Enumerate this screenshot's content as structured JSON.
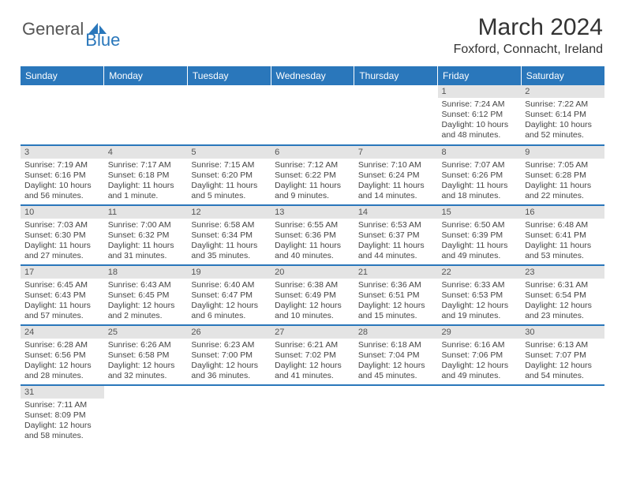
{
  "logo": {
    "general": "General",
    "blue": "Blue"
  },
  "title": "March 2024",
  "location": "Foxford, Connacht, Ireland",
  "colors": {
    "header_bg": "#2a77bb",
    "header_text": "#ffffff",
    "daynum_bg": "#e4e4e4",
    "border": "#2a77bb",
    "text": "#333333"
  },
  "weekdays": [
    "Sunday",
    "Monday",
    "Tuesday",
    "Wednesday",
    "Thursday",
    "Friday",
    "Saturday"
  ],
  "weeks": [
    [
      {
        "n": "",
        "sr": "",
        "ss": "",
        "dl": ""
      },
      {
        "n": "",
        "sr": "",
        "ss": "",
        "dl": ""
      },
      {
        "n": "",
        "sr": "",
        "ss": "",
        "dl": ""
      },
      {
        "n": "",
        "sr": "",
        "ss": "",
        "dl": ""
      },
      {
        "n": "",
        "sr": "",
        "ss": "",
        "dl": ""
      },
      {
        "n": "1",
        "sr": "Sunrise: 7:24 AM",
        "ss": "Sunset: 6:12 PM",
        "dl": "Daylight: 10 hours and 48 minutes."
      },
      {
        "n": "2",
        "sr": "Sunrise: 7:22 AM",
        "ss": "Sunset: 6:14 PM",
        "dl": "Daylight: 10 hours and 52 minutes."
      }
    ],
    [
      {
        "n": "3",
        "sr": "Sunrise: 7:19 AM",
        "ss": "Sunset: 6:16 PM",
        "dl": "Daylight: 10 hours and 56 minutes."
      },
      {
        "n": "4",
        "sr": "Sunrise: 7:17 AM",
        "ss": "Sunset: 6:18 PM",
        "dl": "Daylight: 11 hours and 1 minute."
      },
      {
        "n": "5",
        "sr": "Sunrise: 7:15 AM",
        "ss": "Sunset: 6:20 PM",
        "dl": "Daylight: 11 hours and 5 minutes."
      },
      {
        "n": "6",
        "sr": "Sunrise: 7:12 AM",
        "ss": "Sunset: 6:22 PM",
        "dl": "Daylight: 11 hours and 9 minutes."
      },
      {
        "n": "7",
        "sr": "Sunrise: 7:10 AM",
        "ss": "Sunset: 6:24 PM",
        "dl": "Daylight: 11 hours and 14 minutes."
      },
      {
        "n": "8",
        "sr": "Sunrise: 7:07 AM",
        "ss": "Sunset: 6:26 PM",
        "dl": "Daylight: 11 hours and 18 minutes."
      },
      {
        "n": "9",
        "sr": "Sunrise: 7:05 AM",
        "ss": "Sunset: 6:28 PM",
        "dl": "Daylight: 11 hours and 22 minutes."
      }
    ],
    [
      {
        "n": "10",
        "sr": "Sunrise: 7:03 AM",
        "ss": "Sunset: 6:30 PM",
        "dl": "Daylight: 11 hours and 27 minutes."
      },
      {
        "n": "11",
        "sr": "Sunrise: 7:00 AM",
        "ss": "Sunset: 6:32 PM",
        "dl": "Daylight: 11 hours and 31 minutes."
      },
      {
        "n": "12",
        "sr": "Sunrise: 6:58 AM",
        "ss": "Sunset: 6:34 PM",
        "dl": "Daylight: 11 hours and 35 minutes."
      },
      {
        "n": "13",
        "sr": "Sunrise: 6:55 AM",
        "ss": "Sunset: 6:36 PM",
        "dl": "Daylight: 11 hours and 40 minutes."
      },
      {
        "n": "14",
        "sr": "Sunrise: 6:53 AM",
        "ss": "Sunset: 6:37 PM",
        "dl": "Daylight: 11 hours and 44 minutes."
      },
      {
        "n": "15",
        "sr": "Sunrise: 6:50 AM",
        "ss": "Sunset: 6:39 PM",
        "dl": "Daylight: 11 hours and 49 minutes."
      },
      {
        "n": "16",
        "sr": "Sunrise: 6:48 AM",
        "ss": "Sunset: 6:41 PM",
        "dl": "Daylight: 11 hours and 53 minutes."
      }
    ],
    [
      {
        "n": "17",
        "sr": "Sunrise: 6:45 AM",
        "ss": "Sunset: 6:43 PM",
        "dl": "Daylight: 11 hours and 57 minutes."
      },
      {
        "n": "18",
        "sr": "Sunrise: 6:43 AM",
        "ss": "Sunset: 6:45 PM",
        "dl": "Daylight: 12 hours and 2 minutes."
      },
      {
        "n": "19",
        "sr": "Sunrise: 6:40 AM",
        "ss": "Sunset: 6:47 PM",
        "dl": "Daylight: 12 hours and 6 minutes."
      },
      {
        "n": "20",
        "sr": "Sunrise: 6:38 AM",
        "ss": "Sunset: 6:49 PM",
        "dl": "Daylight: 12 hours and 10 minutes."
      },
      {
        "n": "21",
        "sr": "Sunrise: 6:36 AM",
        "ss": "Sunset: 6:51 PM",
        "dl": "Daylight: 12 hours and 15 minutes."
      },
      {
        "n": "22",
        "sr": "Sunrise: 6:33 AM",
        "ss": "Sunset: 6:53 PM",
        "dl": "Daylight: 12 hours and 19 minutes."
      },
      {
        "n": "23",
        "sr": "Sunrise: 6:31 AM",
        "ss": "Sunset: 6:54 PM",
        "dl": "Daylight: 12 hours and 23 minutes."
      }
    ],
    [
      {
        "n": "24",
        "sr": "Sunrise: 6:28 AM",
        "ss": "Sunset: 6:56 PM",
        "dl": "Daylight: 12 hours and 28 minutes."
      },
      {
        "n": "25",
        "sr": "Sunrise: 6:26 AM",
        "ss": "Sunset: 6:58 PM",
        "dl": "Daylight: 12 hours and 32 minutes."
      },
      {
        "n": "26",
        "sr": "Sunrise: 6:23 AM",
        "ss": "Sunset: 7:00 PM",
        "dl": "Daylight: 12 hours and 36 minutes."
      },
      {
        "n": "27",
        "sr": "Sunrise: 6:21 AM",
        "ss": "Sunset: 7:02 PM",
        "dl": "Daylight: 12 hours and 41 minutes."
      },
      {
        "n": "28",
        "sr": "Sunrise: 6:18 AM",
        "ss": "Sunset: 7:04 PM",
        "dl": "Daylight: 12 hours and 45 minutes."
      },
      {
        "n": "29",
        "sr": "Sunrise: 6:16 AM",
        "ss": "Sunset: 7:06 PM",
        "dl": "Daylight: 12 hours and 49 minutes."
      },
      {
        "n": "30",
        "sr": "Sunrise: 6:13 AM",
        "ss": "Sunset: 7:07 PM",
        "dl": "Daylight: 12 hours and 54 minutes."
      }
    ],
    [
      {
        "n": "31",
        "sr": "Sunrise: 7:11 AM",
        "ss": "Sunset: 8:09 PM",
        "dl": "Daylight: 12 hours and 58 minutes."
      },
      {
        "n": "",
        "sr": "",
        "ss": "",
        "dl": ""
      },
      {
        "n": "",
        "sr": "",
        "ss": "",
        "dl": ""
      },
      {
        "n": "",
        "sr": "",
        "ss": "",
        "dl": ""
      },
      {
        "n": "",
        "sr": "",
        "ss": "",
        "dl": ""
      },
      {
        "n": "",
        "sr": "",
        "ss": "",
        "dl": ""
      },
      {
        "n": "",
        "sr": "",
        "ss": "",
        "dl": ""
      }
    ]
  ]
}
